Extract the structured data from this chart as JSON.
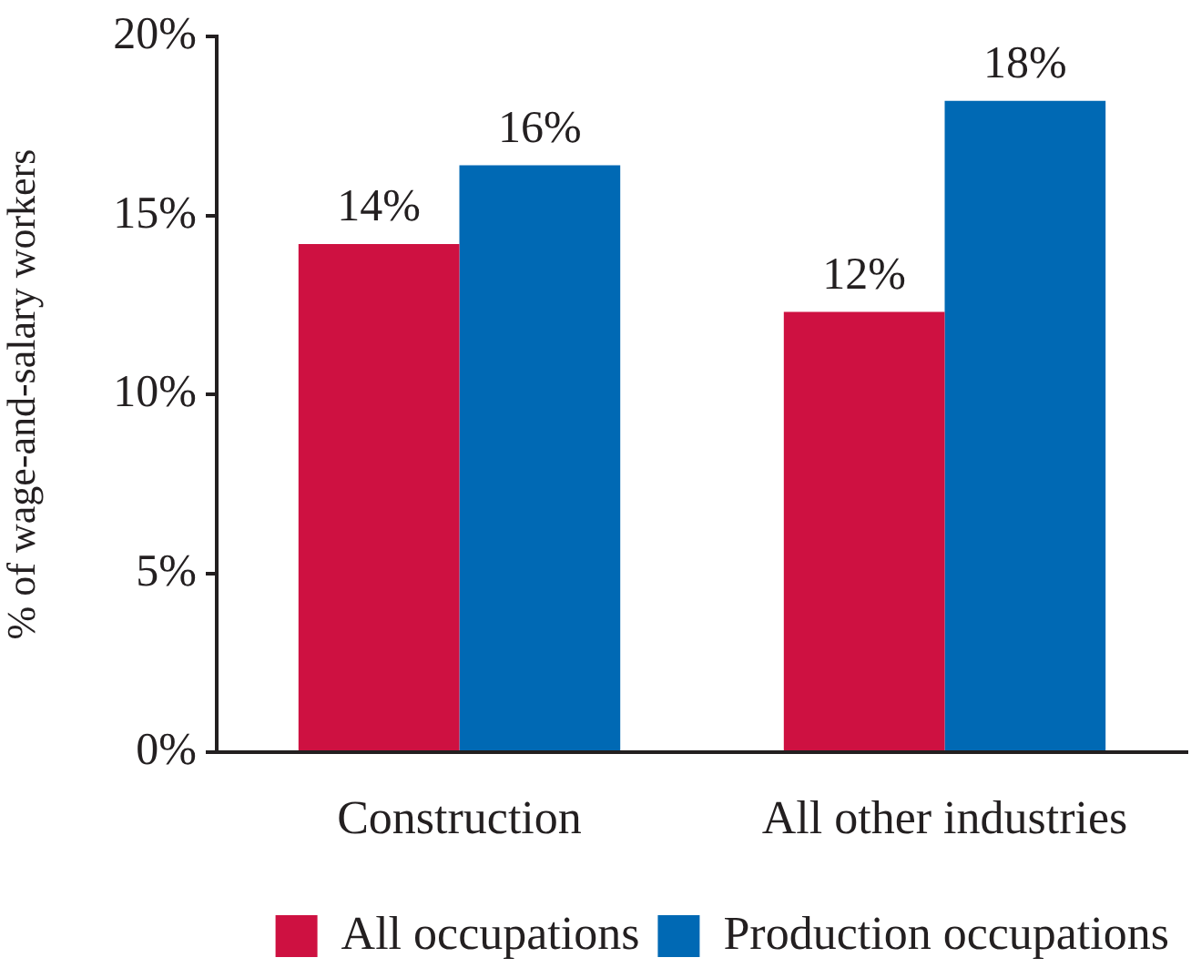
{
  "chart_data": {
    "type": "bar",
    "categories": [
      "Construction",
      "All other industries"
    ],
    "series": [
      {
        "name": "All occupations",
        "color": "#ce1141",
        "values": [
          14.2,
          12.3
        ],
        "value_labels": [
          "14%",
          "12%"
        ]
      },
      {
        "name": "Production occupations",
        "color": "#0069b4",
        "values": [
          16.4,
          18.2
        ],
        "value_labels": [
          "16%",
          "18%"
        ]
      }
    ],
    "ylabel": "% of wage-and-salary workers",
    "ylim": [
      0,
      20
    ],
    "yticks": [
      {
        "value": 0,
        "label": "0%"
      },
      {
        "value": 5,
        "label": "5%"
      },
      {
        "value": 10,
        "label": "10%"
      },
      {
        "value": 15,
        "label": "15%"
      },
      {
        "value": 20,
        "label": "20%"
      }
    ],
    "grid": false,
    "legend": "bottom"
  }
}
